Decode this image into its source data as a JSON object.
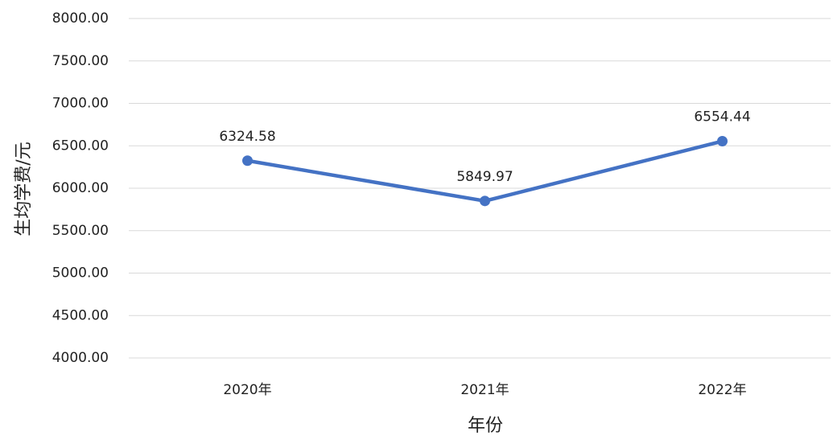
{
  "chart_data": {
    "type": "line",
    "x_label": "年份",
    "y_label": "生均学费/元",
    "categories": [
      "2020年",
      "2021年",
      "2022年"
    ],
    "series": [
      {
        "name": "生均学费",
        "color": "#4472c4",
        "values": [
          6324.58,
          5849.97,
          6554.44
        ]
      }
    ],
    "ylim": [
      4000,
      8000
    ],
    "yticks": [
      {
        "value": 4000,
        "label": "4000.00"
      },
      {
        "value": 4500,
        "label": "4500.00"
      },
      {
        "value": 5000,
        "label": "5000.00"
      },
      {
        "value": 5500,
        "label": "5500.00"
      },
      {
        "value": 6000,
        "label": "6000.00"
      },
      {
        "value": 6500,
        "label": "6500.00"
      },
      {
        "value": 7000,
        "label": "7000.00"
      },
      {
        "value": 7500,
        "label": "7500.00"
      },
      {
        "value": 8000,
        "label": "8000.00"
      }
    ],
    "grid": true
  }
}
